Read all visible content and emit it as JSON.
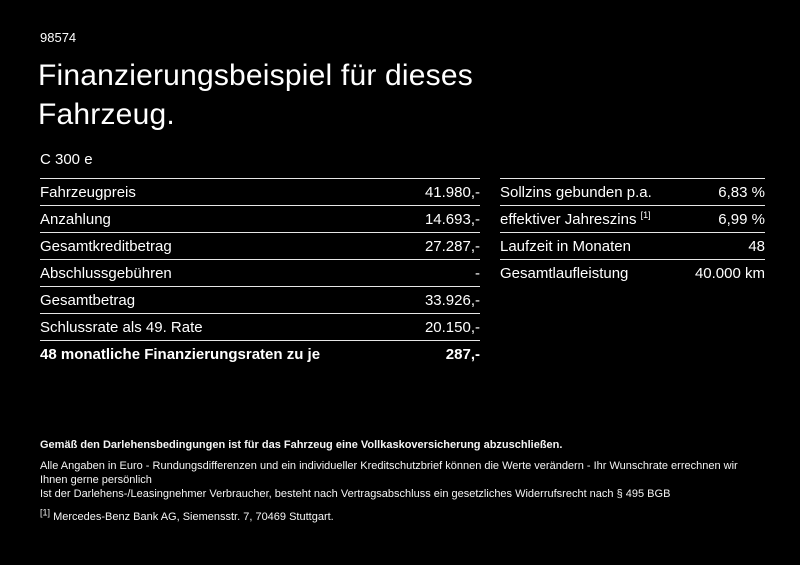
{
  "page": {
    "id_number": "98574",
    "title_line1": "Finanzierungsbeispiel für dieses",
    "title_line2": "Fahrzeug.",
    "model": "C 300 e"
  },
  "left_table": {
    "rows": [
      {
        "label": "Fahrzeugpreis",
        "value": "41.980,-"
      },
      {
        "label": "Anzahlung",
        "value": "14.693,-"
      },
      {
        "label": "Gesamtkreditbetrag",
        "value": "27.287,-"
      },
      {
        "label": "Abschlussgebühren",
        "value": "-"
      },
      {
        "label": "Gesamtbetrag",
        "value": "33.926,-"
      },
      {
        "label": "Schlussrate als 49. Rate",
        "value": "20.150,-"
      },
      {
        "label": "48 monatliche Finanzierungsraten zu je",
        "value": "287,-"
      }
    ]
  },
  "right_table": {
    "rows": [
      {
        "label": "Sollzins gebunden p.a.",
        "value": "6,83 %"
      },
      {
        "label": "effektiver Jahreszins",
        "label_sup": "[1]",
        "value": "6,99 %"
      },
      {
        "label": "Laufzeit in Monaten",
        "value": "48"
      },
      {
        "label": "Gesamtlaufleistung",
        "value": "40.000 km"
      }
    ]
  },
  "footnotes": {
    "bold_line": "Gemäß den Darlehensbedingungen ist für das Fahrzeug eine Vollkaskoversicherung abzuschließen.",
    "line2": "Alle Angaben in Euro - Rundungsdifferenzen und ein individueller Kreditschutzbrief können die Werte verändern - Ihr Wunschrate errechnen wir Ihnen gerne persönlich",
    "line3": "Ist der Darlehens-/Leasingnehmer Verbraucher, besteht nach Vertragsabschluss ein gesetzliches Widerrufsrecht nach § 495 BGB",
    "ref_marker": "[1]",
    "ref_text": "Mercedes-Benz Bank AG, Siemensstr. 7, 70469 Stuttgart."
  },
  "colors": {
    "background": "#000000",
    "text": "#ffffff",
    "divider": "#e6e6e6"
  }
}
